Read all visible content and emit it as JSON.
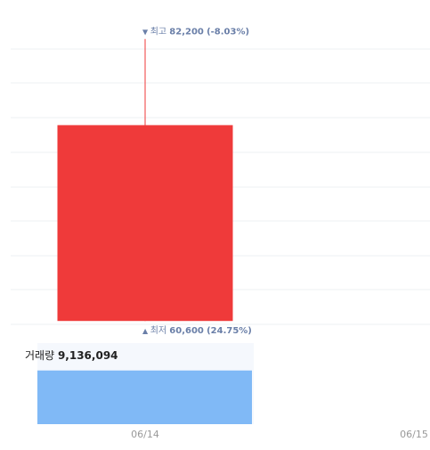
{
  "chart_data": {
    "type": "candlestick",
    "x": [
      "06/14",
      "06/15"
    ],
    "open": [
      60600,
      null
    ],
    "high": [
      82200,
      null
    ],
    "low": [
      60600,
      null
    ],
    "close": [
      75600,
      null
    ],
    "color": "#ef3a3a",
    "ylim": [
      60000,
      83000
    ],
    "annotations": [
      {
        "label": "최고",
        "value": 82200,
        "value_label": "82,200",
        "change_label": "(-8.03%)"
      },
      {
        "label": "최저",
        "value": 60600,
        "value_label": "60,600",
        "change_label": "(24.75%)"
      }
    ],
    "volume": {
      "label": "거래량",
      "values": [
        9136094,
        null
      ],
      "value_labels": [
        "9,136,094",
        null
      ],
      "ylim": [
        0,
        13800000
      ],
      "color": "#80b9f6"
    }
  }
}
